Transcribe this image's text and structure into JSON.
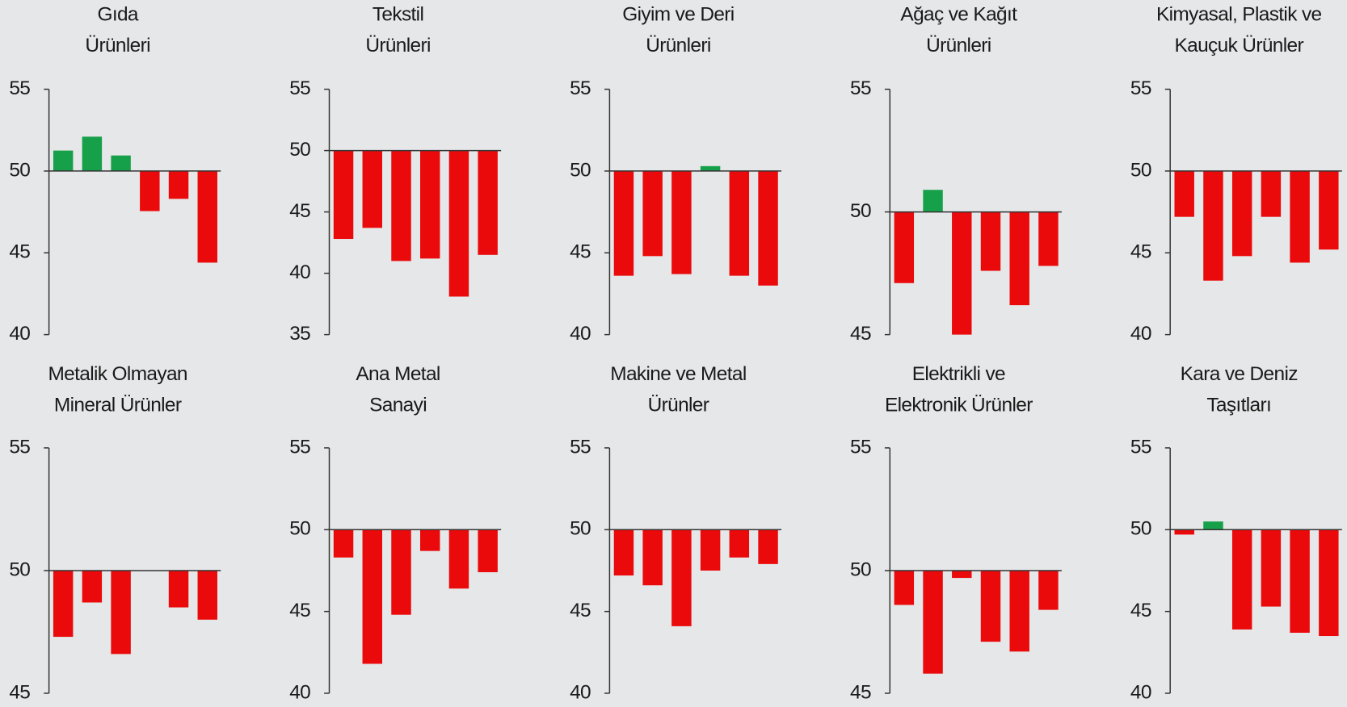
{
  "chart_data": [
    {
      "type": "bar",
      "title": [
        "Gıda",
        "Ürünleri"
      ],
      "values": [
        51.25,
        52.1,
        50.95,
        47.55,
        48.3,
        44.4
      ],
      "ylim": [
        40,
        55
      ],
      "yticks": [
        40,
        45,
        50,
        55
      ],
      "baseline": 50,
      "color_above": "#17a04a",
      "color_below": "#ea0a0c"
    },
    {
      "type": "bar",
      "title": [
        "Tekstil",
        "Ürünleri"
      ],
      "values": [
        42.8,
        43.7,
        41.0,
        41.2,
        38.1,
        41.5
      ],
      "ylim": [
        35,
        55
      ],
      "yticks": [
        35,
        40,
        45,
        50,
        55
      ],
      "baseline": 50,
      "color_above": "#17a04a",
      "color_below": "#ea0a0c"
    },
    {
      "type": "bar",
      "title": [
        "Giyim ve Deri",
        "Ürünleri"
      ],
      "values": [
        43.6,
        44.8,
        43.7,
        50.3,
        43.6,
        43.0
      ],
      "ylim": [
        40,
        55
      ],
      "yticks": [
        40,
        45,
        50,
        55
      ],
      "baseline": 50,
      "color_above": "#17a04a",
      "color_below": "#ea0a0c"
    },
    {
      "type": "bar",
      "title": [
        "Ağaç ve Kağıt",
        "Ürünleri"
      ],
      "values": [
        47.1,
        50.9,
        45.0,
        47.6,
        46.2,
        47.8
      ],
      "ylim": [
        45,
        55
      ],
      "yticks": [
        45,
        50,
        55
      ],
      "baseline": 50,
      "color_above": "#17a04a",
      "color_below": "#ea0a0c"
    },
    {
      "type": "bar",
      "title": [
        "Kimyasal, Plastik ve",
        "Kauçuk Ürünler"
      ],
      "values": [
        47.2,
        43.3,
        44.8,
        47.2,
        44.4,
        45.2
      ],
      "ylim": [
        40,
        55
      ],
      "yticks": [
        40,
        45,
        50,
        55
      ],
      "baseline": 50,
      "color_above": "#17a04a",
      "color_below": "#ea0a0c"
    },
    {
      "type": "bar",
      "title": [
        "Metalik Olmayan",
        "Mineral Ürünler"
      ],
      "values": [
        47.3,
        48.7,
        46.6,
        50,
        48.5,
        48.0
      ],
      "ylim": [
        45,
        55
      ],
      "yticks": [
        45,
        50,
        55
      ],
      "baseline": 50,
      "color_above": "#17a04a",
      "color_below": "#ea0a0c"
    },
    {
      "type": "bar",
      "title": [
        "Ana Metal",
        "Sanayi"
      ],
      "values": [
        48.3,
        41.8,
        44.8,
        48.7,
        46.4,
        47.4
      ],
      "ylim": [
        40,
        55
      ],
      "yticks": [
        40,
        45,
        50,
        55
      ],
      "baseline": 50,
      "color_above": "#17a04a",
      "color_below": "#ea0a0c"
    },
    {
      "type": "bar",
      "title": [
        "Makine ve Metal",
        "Ürünler"
      ],
      "values": [
        47.2,
        46.6,
        44.1,
        47.5,
        48.3,
        47.9
      ],
      "ylim": [
        40,
        55
      ],
      "yticks": [
        40,
        45,
        50,
        55
      ],
      "baseline": 50,
      "color_above": "#17a04a",
      "color_below": "#ea0a0c"
    },
    {
      "type": "bar",
      "title": [
        "Elektrikli ve",
        "Elektronik Ürünler"
      ],
      "values": [
        48.6,
        45.8,
        49.7,
        47.1,
        46.7,
        48.4
      ],
      "ylim": [
        45,
        55
      ],
      "yticks": [
        45,
        50,
        55
      ],
      "baseline": 50,
      "color_above": "#17a04a",
      "color_below": "#ea0a0c"
    },
    {
      "type": "bar",
      "title": [
        "Kara ve Deniz",
        "Taşıtları"
      ],
      "values": [
        49.7,
        50.5,
        43.9,
        45.3,
        43.7,
        43.5
      ],
      "ylim": [
        40,
        55
      ],
      "yticks": [
        40,
        45,
        50,
        55
      ],
      "baseline": 50,
      "color_above": "#17a04a",
      "color_below": "#ea0a0c"
    }
  ]
}
